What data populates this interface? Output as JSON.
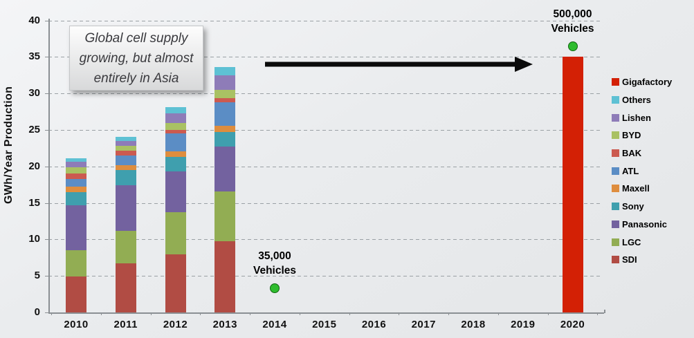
{
  "chart_data": {
    "type": "bar",
    "stacked": true,
    "ylabel": "GWh/Year Production",
    "ylim": [
      0,
      40
    ],
    "ytick_step": 5,
    "ytick_labels": [
      "0",
      "5",
      "10",
      "15",
      "20",
      "25",
      "30",
      "35",
      "40"
    ],
    "grid": "horizontal-dashed",
    "legend_position": "right",
    "categories": [
      "2010",
      "2011",
      "2012",
      "2013",
      "2014",
      "2015",
      "2016",
      "2017",
      "2018",
      "2019",
      "2020"
    ],
    "series": [
      {
        "name": "SDI",
        "color": "#b14c44",
        "values": [
          4.9,
          6.7,
          8.0,
          9.8,
          0,
          0,
          0,
          0,
          0,
          0,
          0
        ]
      },
      {
        "name": "LGC",
        "color": "#92ad53",
        "values": [
          3.6,
          4.5,
          5.7,
          6.8,
          0,
          0,
          0,
          0,
          0,
          0,
          0
        ]
      },
      {
        "name": "Panasonic",
        "color": "#73629f",
        "values": [
          6.2,
          6.2,
          5.6,
          6.1,
          0,
          0,
          0,
          0,
          0,
          0,
          0
        ]
      },
      {
        "name": "Sony",
        "color": "#3f9fae",
        "values": [
          1.8,
          2.1,
          2.0,
          2.0,
          0,
          0,
          0,
          0,
          0,
          0,
          0
        ]
      },
      {
        "name": "Maxell",
        "color": "#de8d3e",
        "values": [
          0.7,
          0.7,
          0.8,
          0.9,
          0,
          0,
          0,
          0,
          0,
          0,
          0
        ]
      },
      {
        "name": "ATL",
        "color": "#5b8dc5",
        "values": [
          1.1,
          1.3,
          2.4,
          3.2,
          0,
          0,
          0,
          0,
          0,
          0,
          0
        ]
      },
      {
        "name": "BAK",
        "color": "#cb5a50",
        "values": [
          0.7,
          0.7,
          0.5,
          0.6,
          0,
          0,
          0,
          0,
          0,
          0,
          0
        ]
      },
      {
        "name": "BYD",
        "color": "#a9c163",
        "values": [
          0.9,
          0.6,
          0.9,
          1.1,
          0,
          0,
          0,
          0,
          0,
          0,
          0
        ]
      },
      {
        "name": "Lishen",
        "color": "#8e7cb8",
        "values": [
          0.7,
          0.7,
          1.4,
          2.0,
          0,
          0,
          0,
          0,
          0,
          0,
          0
        ]
      },
      {
        "name": "Others",
        "color": "#5ec1d4",
        "values": [
          0.5,
          0.6,
          0.8,
          1.1,
          0,
          0,
          0,
          0,
          0,
          0,
          0
        ]
      },
      {
        "name": "Gigafactory",
        "color": "#d32005",
        "values": [
          0,
          0,
          0,
          0,
          0,
          0,
          0,
          0,
          0,
          0,
          35
        ]
      }
    ],
    "markers": [
      {
        "category": "2014",
        "value": 3.3,
        "color": "#2ebc2e",
        "label_lines": [
          "35,000",
          "Vehicles"
        ]
      },
      {
        "category": "2020",
        "value": 36.5,
        "color": "#2ebc2e",
        "label_lines": [
          "500,000",
          "Vehicles"
        ]
      }
    ],
    "arrow": {
      "from_category": "2014",
      "to_category": "2020",
      "at_value": 34.1
    },
    "annotation": {
      "text": "Global cell supply growing, but almost entirely in Asia"
    },
    "legend_items": [
      "Gigafactory",
      "Others",
      "Lishen",
      "BYD",
      "BAK",
      "ATL",
      "Maxell",
      "Sony",
      "Panasonic",
      "LGC",
      "SDI"
    ]
  }
}
